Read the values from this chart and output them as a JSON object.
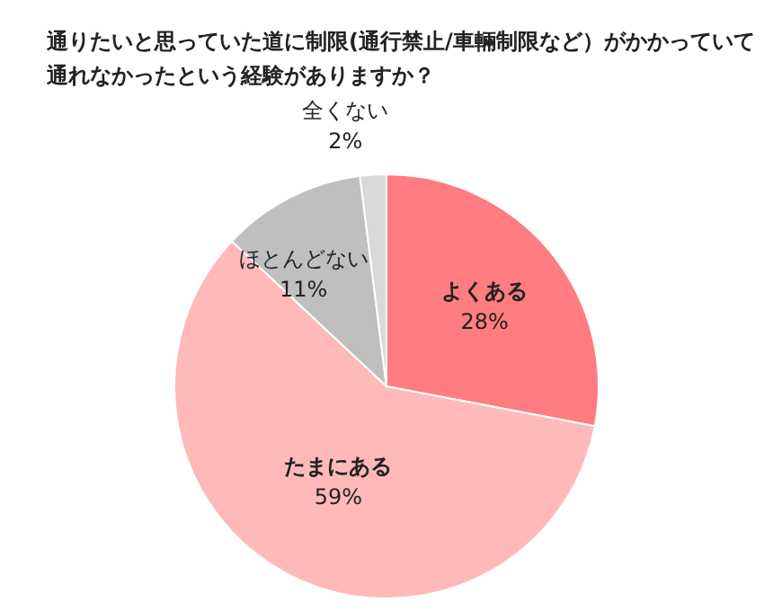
{
  "chart_data": {
    "type": "pie",
    "title": "通りたいと思っていた道に制限(通行禁止/車輛制限など）がかかっていて通れなかったという経験がありますか？",
    "categories": [
      "よくある",
      "たまにある",
      "ほとんどない",
      "全くない"
    ],
    "values": [
      28,
      59,
      11,
      2
    ],
    "colors": [
      "#ff7c80",
      "#ffb9b9",
      "#bfbfbf",
      "#d9d9d9"
    ],
    "value_labels": [
      "28%",
      "59%",
      "11%",
      "2%"
    ],
    "legend": false
  }
}
